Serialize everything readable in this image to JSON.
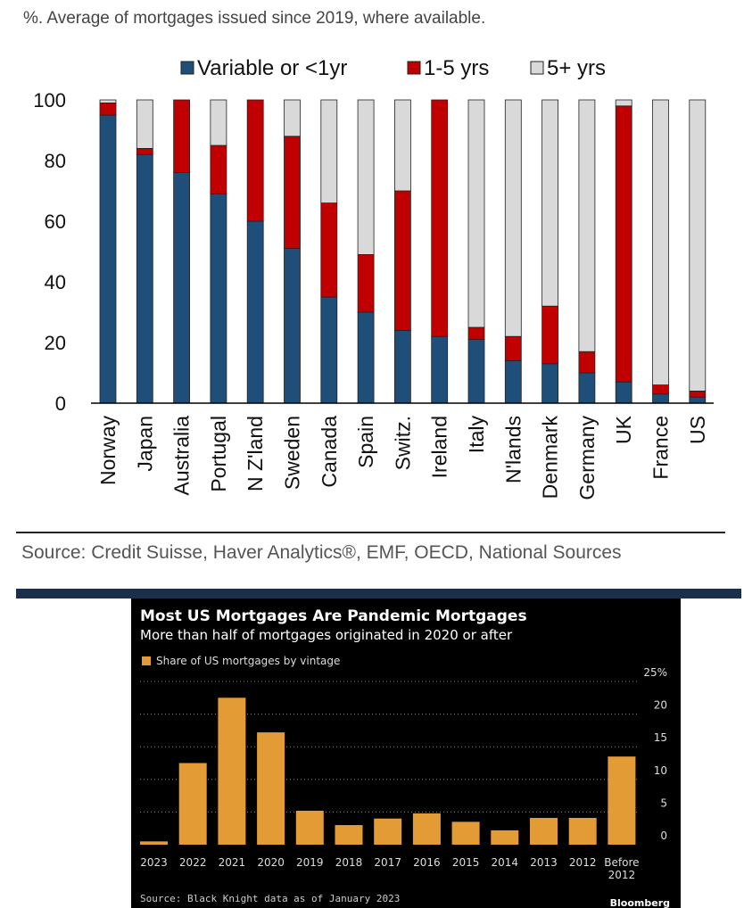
{
  "top": {
    "subtitle": "%. Average of mortgages issued since 2019, where available.",
    "source": "Source: Credit Suisse, Haver Analytics®, EMF, OECD, National Sources",
    "colors": {
      "variable": "#1f4e79",
      "mid": "#c00000",
      "long": "#d9d9d9",
      "axis": "#000000"
    }
  },
  "bottom": {
    "title": "Most US Mortgages Are Pandemic Mortgages",
    "subtitle": "More than half of mortgages originated in 2020 or after",
    "legend_label": "Share of US mortgages by vintage",
    "source": "Source: Black Knight data as of January 2023",
    "brand": "Bloomberg",
    "colors": {
      "bar": "#e39b35",
      "background": "#000000",
      "grid": "#888888"
    }
  },
  "chart_data": [
    {
      "type": "bar",
      "stacked": true,
      "title": "%. Average of mortgages issued since 2019, where available.",
      "categories": [
        "Norway",
        "Japan",
        "Australia",
        "Portugal",
        "N Z'land",
        "Sweden",
        "Canada",
        "Spain",
        "Switz.",
        "Ireland",
        "Italy",
        "N'lands",
        "Denmark",
        "Germany",
        "UK",
        "France",
        "US"
      ],
      "series": [
        {
          "name": "Variable or <1yr",
          "values": [
            95,
            82,
            76,
            69,
            60,
            51,
            35,
            30,
            24,
            22,
            21,
            14,
            13,
            10,
            7,
            3,
            2
          ]
        },
        {
          "name": "1-5 yrs",
          "values": [
            4,
            2,
            24,
            16,
            40,
            37,
            31,
            19,
            46,
            78,
            4,
            8,
            19,
            7,
            91,
            3,
            2
          ]
        },
        {
          "name": "5+ yrs",
          "values": [
            1,
            16,
            0,
            15,
            0,
            12,
            34,
            51,
            30,
            0,
            75,
            78,
            68,
            83,
            2,
            94,
            96
          ]
        }
      ],
      "ylim": [
        0,
        100
      ],
      "yticks": [
        0,
        20,
        40,
        60,
        80,
        100
      ],
      "legend_position": "top-center"
    },
    {
      "type": "bar",
      "title": "Most US Mortgages Are Pandemic Mortgages",
      "subtitle": "More than half of mortgages originated in 2020 or after",
      "categories": [
        "2023",
        "2022",
        "2021",
        "2020",
        "2019",
        "2018",
        "2017",
        "2016",
        "2015",
        "2014",
        "2013",
        "2012",
        "Before 2012"
      ],
      "category_lines": [
        [
          "2023"
        ],
        [
          "2022"
        ],
        [
          "2021"
        ],
        [
          "2020"
        ],
        [
          "2019"
        ],
        [
          "2018"
        ],
        [
          "2017"
        ],
        [
          "2016"
        ],
        [
          "2015"
        ],
        [
          "2014"
        ],
        [
          "2013"
        ],
        [
          "2012"
        ],
        [
          "Before",
          "2012"
        ]
      ],
      "series": [
        {
          "name": "Share of US mortgages by vintage",
          "values": [
            0.5,
            12.5,
            22.5,
            17.2,
            5.2,
            3.0,
            4.0,
            4.8,
            3.5,
            2.2,
            4.1,
            4.1,
            13.5
          ]
        }
      ],
      "ylim": [
        0,
        25
      ],
      "yticks": [
        0,
        5,
        10,
        15,
        20,
        25
      ],
      "ytick_labels": [
        "0",
        "5",
        "10",
        "15",
        "20",
        "25%"
      ],
      "ylabel_position": "right"
    }
  ]
}
